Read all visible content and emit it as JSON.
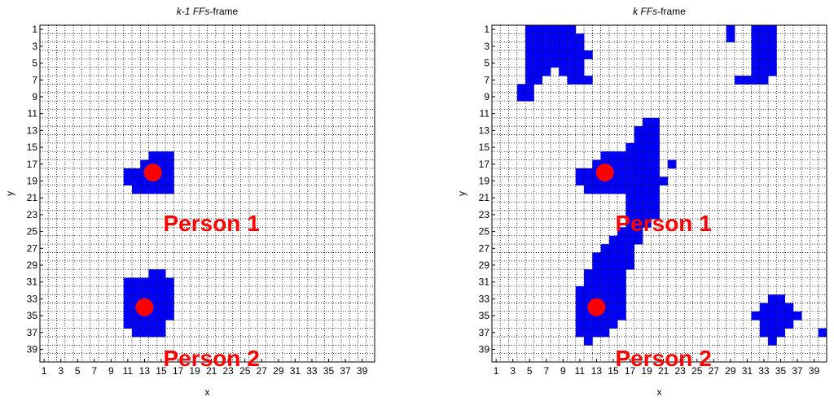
{
  "colors": {
    "cell": "#0000ff",
    "centroid": "#ff0000",
    "label": "#ff0000",
    "grid": "#000000"
  },
  "chart_data": [
    {
      "type": "heatmap",
      "title_prefix": "k-1 FFs",
      "title_suffix": "-frame",
      "xlabel": "x",
      "ylabel": "y",
      "xlim": [
        1,
        40
      ],
      "ylim": [
        1,
        40
      ],
      "y_reversed": true,
      "grid": true,
      "xticks": [
        "1",
        "3",
        "5",
        "7",
        "9",
        "11",
        "13",
        "15",
        "17",
        "19",
        "21",
        "23",
        "25",
        "27",
        "29",
        "31",
        "33",
        "35",
        "37",
        "39"
      ],
      "yticks": [
        "1",
        "3",
        "5",
        "7",
        "9",
        "11",
        "13",
        "15",
        "17",
        "19",
        "21",
        "23",
        "25",
        "27",
        "29",
        "31",
        "33",
        "35",
        "37",
        "39"
      ],
      "active_cell_runs": [
        {
          "y": 16,
          "x": [
            14,
            16
          ]
        },
        {
          "y": 17,
          "x": [
            13,
            16
          ]
        },
        {
          "y": 18,
          "x": [
            11,
            16
          ]
        },
        {
          "y": 19,
          "x": [
            11,
            16
          ]
        },
        {
          "y": 20,
          "x": [
            12,
            16
          ]
        },
        {
          "y": 30,
          "x": [
            14,
            15
          ]
        },
        {
          "y": 31,
          "x": [
            11,
            16
          ]
        },
        {
          "y": 32,
          "x": [
            11,
            16
          ]
        },
        {
          "y": 33,
          "x": [
            11,
            16
          ]
        },
        {
          "y": 34,
          "x": [
            11,
            16
          ]
        },
        {
          "y": 35,
          "x": [
            11,
            16
          ]
        },
        {
          "y": 36,
          "x": [
            11,
            15
          ]
        },
        {
          "y": 37,
          "x": [
            12,
            15
          ]
        }
      ],
      "centroids": [
        {
          "x": 14,
          "y": 18
        },
        {
          "x": 13,
          "y": 34
        }
      ],
      "annotations": [
        {
          "text": "Person 1",
          "x": 21,
          "y": 24
        },
        {
          "text": "Person 2",
          "x": 21,
          "y": 40
        }
      ]
    },
    {
      "type": "heatmap",
      "title_prefix": "k FFs",
      "title_suffix": "-frame",
      "xlabel": "x",
      "ylabel": "y",
      "xlim": [
        1,
        40
      ],
      "ylim": [
        1,
        40
      ],
      "y_reversed": true,
      "grid": true,
      "xticks": [
        "1",
        "3",
        "5",
        "7",
        "9",
        "11",
        "13",
        "15",
        "17",
        "19",
        "21",
        "23",
        "25",
        "27",
        "29",
        "31",
        "33",
        "35",
        "37",
        "39"
      ],
      "yticks": [
        "1",
        "3",
        "5",
        "7",
        "9",
        "11",
        "13",
        "15",
        "17",
        "19",
        "21",
        "23",
        "25",
        "27",
        "29",
        "31",
        "33",
        "35",
        "37",
        "39"
      ],
      "active_cell_runs": [
        {
          "y": 1,
          "x": [
            5,
            10
          ]
        },
        {
          "y": 1,
          "x": [
            29,
            29
          ]
        },
        {
          "y": 1,
          "x": [
            32,
            34
          ]
        },
        {
          "y": 2,
          "x": [
            5,
            11
          ]
        },
        {
          "y": 2,
          "x": [
            29,
            29
          ]
        },
        {
          "y": 2,
          "x": [
            32,
            34
          ]
        },
        {
          "y": 3,
          "x": [
            5,
            11
          ]
        },
        {
          "y": 3,
          "x": [
            32,
            34
          ]
        },
        {
          "y": 4,
          "x": [
            5,
            12
          ]
        },
        {
          "y": 4,
          "x": [
            32,
            34
          ]
        },
        {
          "y": 5,
          "x": [
            5,
            11
          ]
        },
        {
          "y": 5,
          "x": [
            32,
            34
          ]
        },
        {
          "y": 6,
          "x": [
            5,
            7
          ]
        },
        {
          "y": 6,
          "x": [
            9,
            11
          ]
        },
        {
          "y": 6,
          "x": [
            32,
            34
          ]
        },
        {
          "y": 7,
          "x": [
            5,
            6
          ]
        },
        {
          "y": 7,
          "x": [
            10,
            12
          ]
        },
        {
          "y": 7,
          "x": [
            30,
            33
          ]
        },
        {
          "y": 8,
          "x": [
            4,
            5
          ]
        },
        {
          "y": 9,
          "x": [
            4,
            5
          ]
        },
        {
          "y": 12,
          "x": [
            19,
            20
          ]
        },
        {
          "y": 13,
          "x": [
            18,
            20
          ]
        },
        {
          "y": 14,
          "x": [
            18,
            20
          ]
        },
        {
          "y": 15,
          "x": [
            17,
            20
          ]
        },
        {
          "y": 16,
          "x": [
            14,
            20
          ]
        },
        {
          "y": 17,
          "x": [
            13,
            20
          ]
        },
        {
          "y": 17,
          "x": [
            22,
            22
          ]
        },
        {
          "y": 18,
          "x": [
            11,
            20
          ]
        },
        {
          "y": 19,
          "x": [
            11,
            21
          ]
        },
        {
          "y": 20,
          "x": [
            12,
            20
          ]
        },
        {
          "y": 21,
          "x": [
            17,
            20
          ]
        },
        {
          "y": 22,
          "x": [
            17,
            20
          ]
        },
        {
          "y": 23,
          "x": [
            17,
            20
          ]
        },
        {
          "y": 24,
          "x": [
            17,
            19
          ]
        },
        {
          "y": 25,
          "x": [
            16,
            18
          ]
        },
        {
          "y": 26,
          "x": [
            15,
            18
          ]
        },
        {
          "y": 27,
          "x": [
            14,
            17
          ]
        },
        {
          "y": 28,
          "x": [
            13,
            17
          ]
        },
        {
          "y": 29,
          "x": [
            13,
            17
          ]
        },
        {
          "y": 30,
          "x": [
            12,
            16
          ]
        },
        {
          "y": 31,
          "x": [
            12,
            16
          ]
        },
        {
          "y": 32,
          "x": [
            11,
            16
          ]
        },
        {
          "y": 33,
          "x": [
            11,
            16
          ]
        },
        {
          "y": 33,
          "x": [
            34,
            35
          ]
        },
        {
          "y": 34,
          "x": [
            11,
            16
          ]
        },
        {
          "y": 34,
          "x": [
            33,
            36
          ]
        },
        {
          "y": 35,
          "x": [
            11,
            16
          ]
        },
        {
          "y": 35,
          "x": [
            32,
            37
          ]
        },
        {
          "y": 36,
          "x": [
            11,
            15
          ]
        },
        {
          "y": 36,
          "x": [
            33,
            36
          ]
        },
        {
          "y": 37,
          "x": [
            11,
            14
          ]
        },
        {
          "y": 37,
          "x": [
            33,
            35
          ]
        },
        {
          "y": 37,
          "x": [
            40,
            40
          ]
        },
        {
          "y": 38,
          "x": [
            12,
            12
          ]
        },
        {
          "y": 38,
          "x": [
            34,
            34
          ]
        }
      ],
      "centroids": [
        {
          "x": 14,
          "y": 18
        },
        {
          "x": 13,
          "y": 34
        }
      ],
      "annotations": [
        {
          "text": "Person 1",
          "x": 21,
          "y": 24
        },
        {
          "text": "Person 2",
          "x": 21,
          "y": 40
        }
      ]
    }
  ]
}
